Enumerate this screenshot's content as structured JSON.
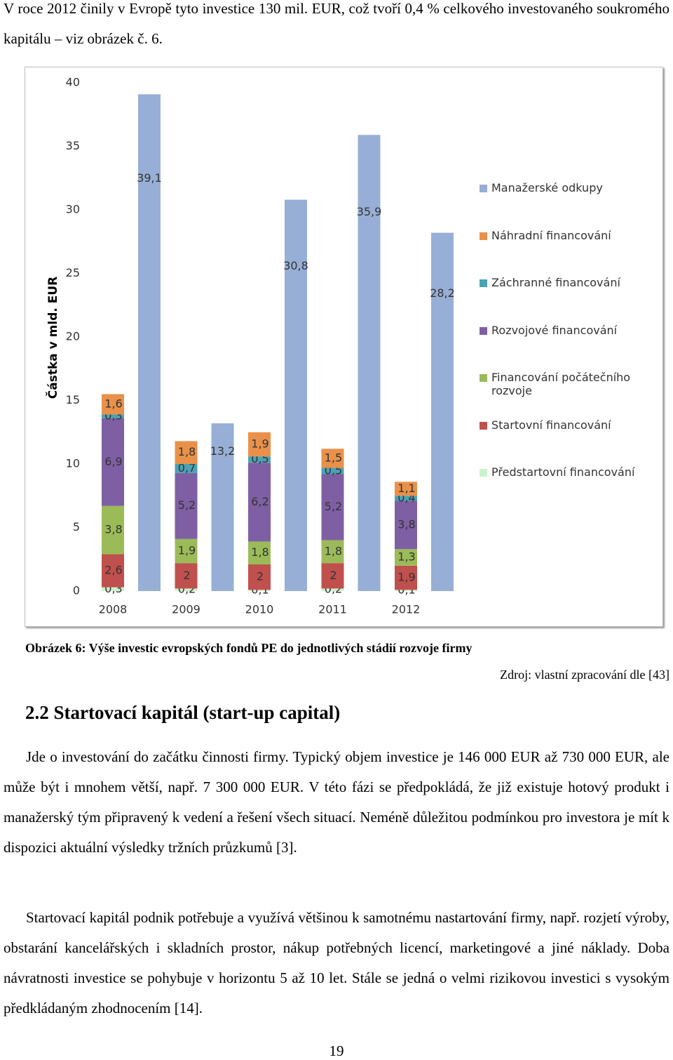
{
  "intro": "V roce 2012 činily v Evropě tyto investice 130 mil. EUR, což tvoří 0,4 % celkového investovaného soukromého kapitálu – viz obrázek č. 6.",
  "chart_data": {
    "type": "bar",
    "stacked": true,
    "y_label": "Částka v mld. EUR",
    "categories": [
      "2008",
      "2009",
      "2010",
      "2011",
      "2012"
    ],
    "ylim": [
      0,
      40
    ],
    "yticks": [
      0,
      5,
      10,
      15,
      20,
      25,
      30,
      35,
      40
    ],
    "grid": false,
    "legend": "right",
    "series": [
      {
        "name": "Předstartovní financování",
        "color": "#ccf2cc",
        "stack": 0,
        "values": [
          0.3,
          0.2,
          0.1,
          0.2,
          0.1
        ],
        "value_labels": [
          "0,3",
          "0,2",
          "0,1",
          "0,2",
          "0,1"
        ]
      },
      {
        "name": "Startovní financování",
        "color": "#c0504d",
        "stack": 0,
        "values": [
          2.6,
          2,
          2,
          2,
          1.9
        ],
        "value_labels": [
          "2,6",
          "2",
          "2",
          "2",
          "1,9"
        ]
      },
      {
        "name": "Financování počátečního rozvoje",
        "color": "#9bbb59",
        "stack": 0,
        "values": [
          3.8,
          1.9,
          1.8,
          1.8,
          1.3
        ],
        "value_labels": [
          "3,8",
          "1,9",
          "1,8",
          "1,8",
          "1,3"
        ]
      },
      {
        "name": "Rozvojové financování",
        "color": "#7f5fa3",
        "stack": 0,
        "values": [
          6.9,
          5.2,
          6.2,
          5.2,
          3.8
        ],
        "value_labels": [
          "6,9",
          "5,2",
          "6,2",
          "5,2",
          "3,8"
        ]
      },
      {
        "name": "Záchranné financování",
        "color": "#4aa2b5",
        "stack": 0,
        "values": [
          0.3,
          0.7,
          0.5,
          0.5,
          0.4
        ],
        "value_labels": [
          "0,3",
          "0,7",
          "0,5",
          "0,5",
          "0,4"
        ]
      },
      {
        "name": "Náhradní financování",
        "color": "#e9914a",
        "stack": 0,
        "values": [
          1.6,
          1.8,
          1.9,
          1.5,
          1.1
        ],
        "value_labels": [
          "1,6",
          "1,8",
          "1,9",
          "1,5",
          "1,1"
        ]
      },
      {
        "name": "Manažerské odkupy",
        "color": "#97afd6",
        "stack": 1,
        "values": [
          39.1,
          13.2,
          30.8,
          35.9,
          28.2
        ],
        "value_labels": [
          "39,1",
          "13,2",
          "30,8",
          "35,9",
          "28,2"
        ]
      }
    ]
  },
  "figure_caption": "Obrázek 6: Výše investic evropských fondů PE do jednotlivých stádií rozvoje firmy",
  "source": "Zdroj: vlastní zpracování dle [43]",
  "section_heading": "2.2 Startovací kapitál (start-up capital)",
  "paragraphs": [
    "Jde o investování do začátku činnosti firmy. Typický objem investice je 146 000 EUR až 730 000 EUR, ale může být i mnohem větší, např. 7 300 000 EUR. V této fázi se předpokládá, že již existuje hotový produkt i manažerský tým připravený k vedení a řešení všech situací. Neméně důležitou podmínkou pro investora je mít k dispozici aktuální výsledky tržních průzkumů [3].",
    "Startovací kapitál podnik potřebuje a využívá většinou k samotnému nastartování firmy, např. rozjetí výroby, obstarání kancelářských i skladních prostor, nákup potřebných licencí, marketingové a jiné náklady. Doba návratnosti investice se pohybuje v horizontu 5 až 10 let. Stále se jedná o velmi rizikovou investici s vysokým předkládaným zhodnocením [14]."
  ],
  "page_number": "19"
}
